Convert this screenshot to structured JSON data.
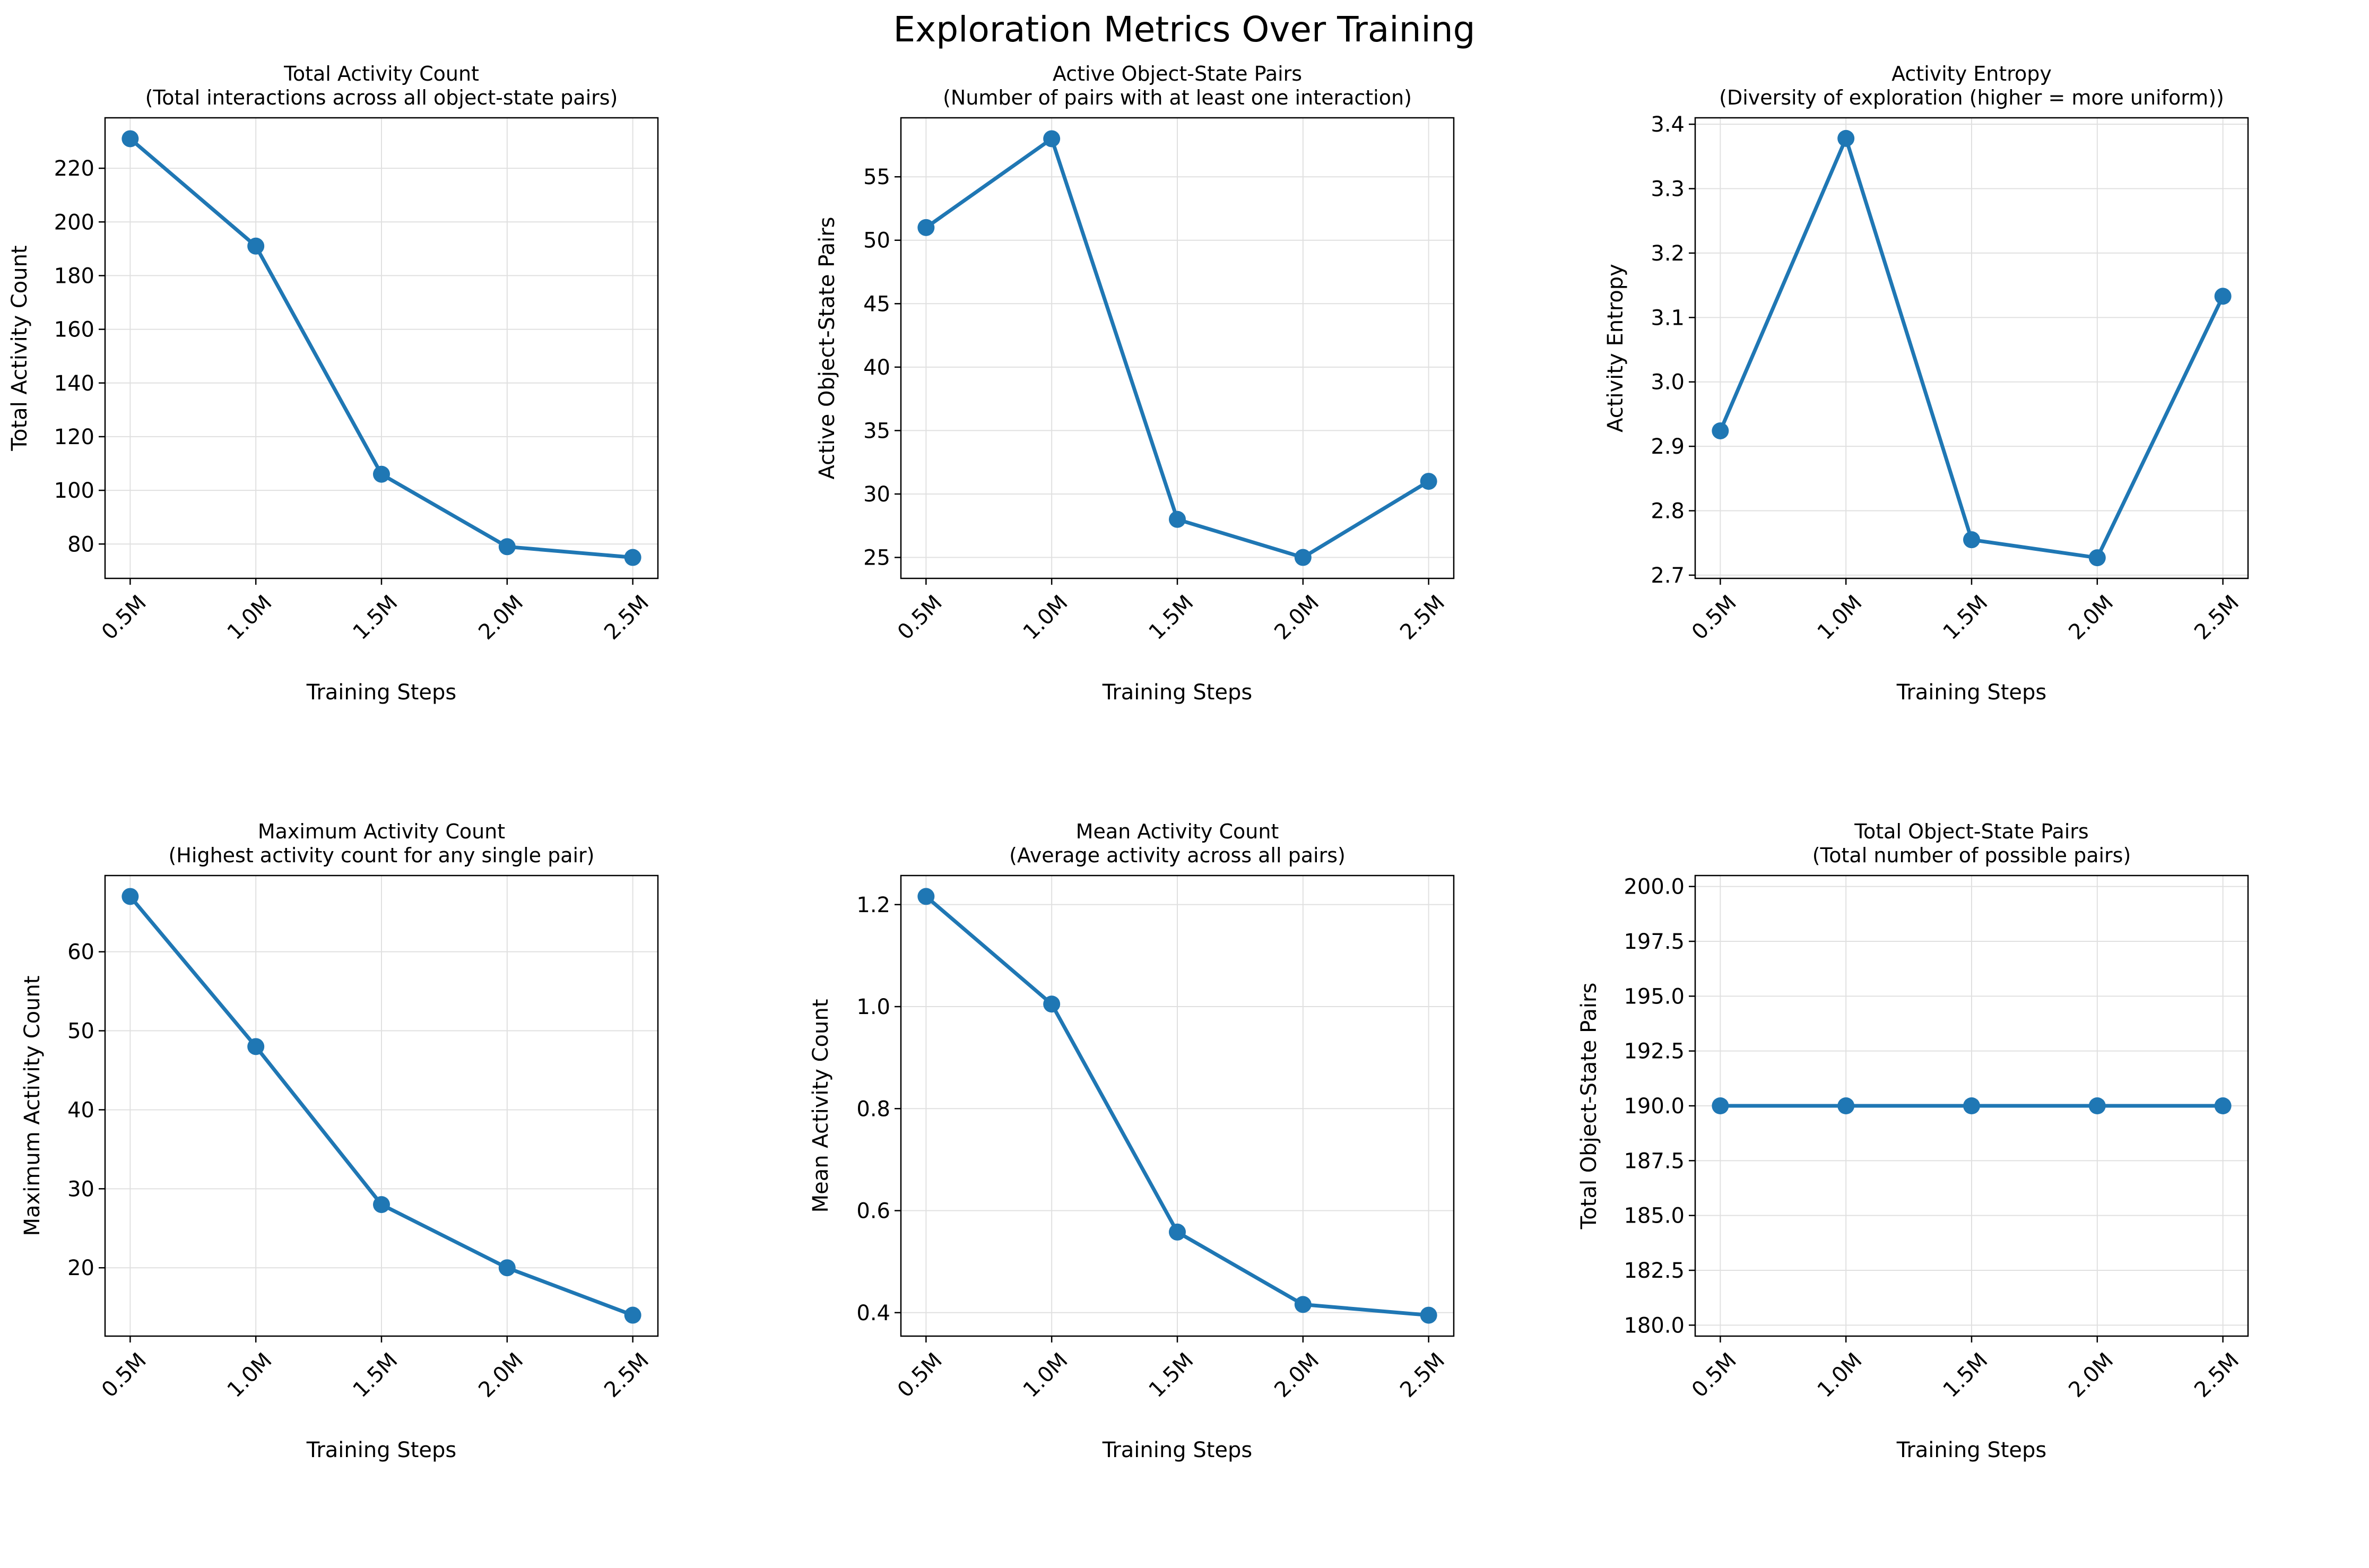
{
  "figure_title": "Exploration Metrics Over Training",
  "colors": {
    "series": "#1f77b4",
    "grid": "#e0e0e0",
    "axes": "#000000"
  },
  "chart_data": [
    {
      "type": "line",
      "title": "Total Activity Count",
      "subtitle": "(Total interactions across all object-state pairs)",
      "xlabel": "Training Steps",
      "ylabel": "Total Activity Count",
      "categories": [
        "0.5M",
        "1.0M",
        "1.5M",
        "2.0M",
        "2.5M"
      ],
      "values": [
        231,
        191,
        106,
        79,
        75
      ],
      "ylim": [
        67.2,
        238.8
      ],
      "yticks": [
        80,
        100,
        120,
        140,
        160,
        180,
        200,
        220
      ],
      "ytick_labels": [
        "80",
        "100",
        "120",
        "140",
        "160",
        "180",
        "200",
        "220"
      ],
      "grid": true
    },
    {
      "type": "line",
      "title": "Active Object-State Pairs",
      "subtitle": "(Number of pairs with at least one interaction)",
      "xlabel": "Training Steps",
      "ylabel": "Active Object-State Pairs",
      "categories": [
        "0.5M",
        "1.0M",
        "1.5M",
        "2.0M",
        "2.5M"
      ],
      "values": [
        51,
        58,
        28,
        25,
        31
      ],
      "ylim": [
        23.35,
        59.65
      ],
      "yticks": [
        25,
        30,
        35,
        40,
        45,
        50,
        55
      ],
      "ytick_labels": [
        "25",
        "30",
        "35",
        "40",
        "45",
        "50",
        "55"
      ],
      "grid": true
    },
    {
      "type": "line",
      "title": "Activity Entropy",
      "subtitle": "(Diversity of exploration (higher = more uniform))",
      "xlabel": "Training Steps",
      "ylabel": "Activity Entropy",
      "categories": [
        "0.5M",
        "1.0M",
        "1.5M",
        "2.0M",
        "2.5M"
      ],
      "values": [
        2.924,
        3.378,
        2.755,
        2.727,
        3.133
      ],
      "ylim": [
        2.695,
        3.41
      ],
      "yticks": [
        2.7,
        2.8,
        2.9,
        3.0,
        3.1,
        3.2,
        3.3,
        3.4
      ],
      "ytick_labels": [
        "2.7",
        "2.8",
        "2.9",
        "3.0",
        "3.1",
        "3.2",
        "3.3",
        "3.4"
      ],
      "grid": true
    },
    {
      "type": "line",
      "title": "Maximum Activity Count",
      "subtitle": "(Highest activity count for any single pair)",
      "xlabel": "Training Steps",
      "ylabel": "Maximum Activity Count",
      "categories": [
        "0.5M",
        "1.0M",
        "1.5M",
        "2.0M",
        "2.5M"
      ],
      "values": [
        67,
        48,
        28,
        20,
        14
      ],
      "ylim": [
        11.35,
        69.65
      ],
      "yticks": [
        20,
        30,
        40,
        50,
        60
      ],
      "ytick_labels": [
        "20",
        "30",
        "40",
        "50",
        "60"
      ],
      "grid": true
    },
    {
      "type": "line",
      "title": "Mean Activity Count",
      "subtitle": "(Average activity across all pairs)",
      "xlabel": "Training Steps",
      "ylabel": "Mean Activity Count",
      "categories": [
        "0.5M",
        "1.0M",
        "1.5M",
        "2.0M",
        "2.5M"
      ],
      "values": [
        1.216,
        1.005,
        0.558,
        0.416,
        0.395
      ],
      "ylim": [
        0.354,
        1.257
      ],
      "yticks": [
        0.4,
        0.6,
        0.8,
        1.0,
        1.2
      ],
      "ytick_labels": [
        "0.4",
        "0.6",
        "0.8",
        "1.0",
        "1.2"
      ],
      "grid": true
    },
    {
      "type": "line",
      "title": "Total Object-State Pairs",
      "subtitle": "(Total number of possible pairs)",
      "xlabel": "Training Steps",
      "ylabel": "Total Object-State Pairs",
      "categories": [
        "0.5M",
        "1.0M",
        "1.5M",
        "2.0M",
        "2.5M"
      ],
      "values": [
        190,
        190,
        190,
        190,
        190
      ],
      "ylim": [
        179.5,
        200.5
      ],
      "yticks": [
        180.0,
        182.5,
        185.0,
        187.5,
        190.0,
        192.5,
        195.0,
        197.5,
        200.0
      ],
      "ytick_labels": [
        "180.0",
        "182.5",
        "185.0",
        "187.5",
        "190.0",
        "192.5",
        "195.0",
        "197.5",
        "200.0"
      ],
      "grid": true
    }
  ]
}
